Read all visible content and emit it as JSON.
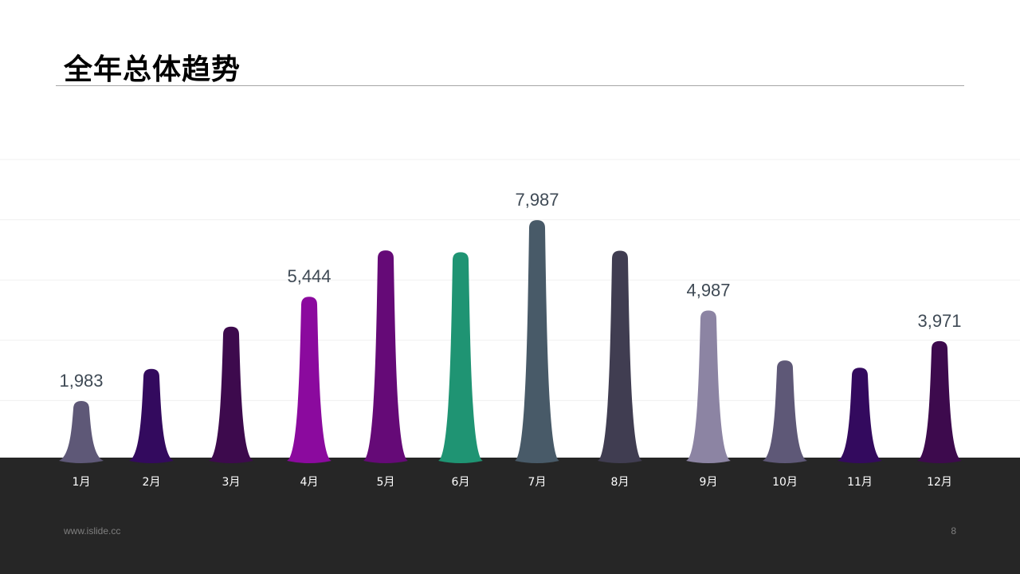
{
  "slide": {
    "title": "全年总体趋势",
    "footer_site": "www.islide.cc",
    "page_number": "8"
  },
  "chart_data": {
    "type": "bar",
    "categories": [
      "1月",
      "2月",
      "3月",
      "4月",
      "5月",
      "6月",
      "7月",
      "8月",
      "9月",
      "10月",
      "11月",
      "12月"
    ],
    "values": [
      1983,
      3050,
      4450,
      5444,
      6980,
      6920,
      7987,
      6970,
      4987,
      3330,
      3090,
      3971
    ],
    "data_labels": [
      "1,983",
      "",
      "",
      "5,444",
      "",
      "",
      "7,987",
      "",
      "4,987",
      "",
      "",
      "3,971"
    ],
    "colors": [
      "#5E5877",
      "#330A5E",
      "#3D0A4D",
      "#8B0A9E",
      "#650A77",
      "#1F9473",
      "#485A68",
      "#403D51",
      "#8C84A3",
      "#5E5877",
      "#330A5E",
      "#3D0A4D"
    ],
    "ylim": [
      0,
      10000
    ],
    "grid": true,
    "legend": false
  }
}
